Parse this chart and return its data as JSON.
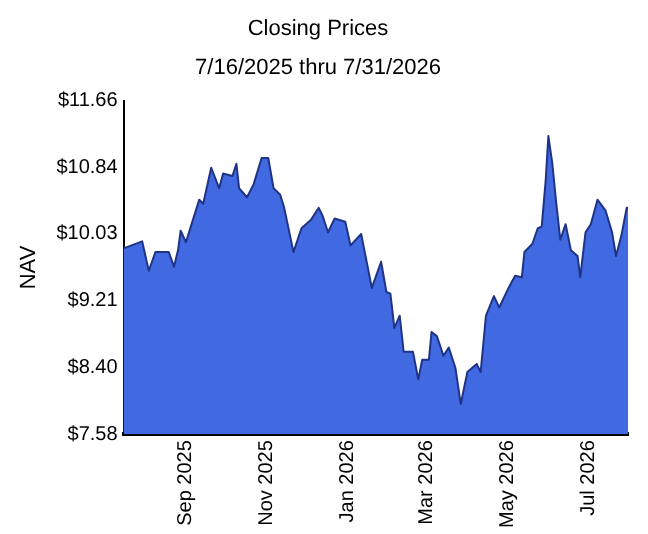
{
  "chart_data": {
    "type": "area",
    "title": "Closing Prices",
    "subtitle": "7/16/2025 thru 7/31/2026",
    "ylabel": "NAV",
    "x": [
      "2025-07-16",
      "2025-07-17",
      "2025-07-30",
      "2025-08-04",
      "2025-08-09",
      "2025-08-19",
      "2025-08-23",
      "2025-08-26",
      "2025-08-28",
      "2025-09-01",
      "2025-09-11",
      "2025-09-14",
      "2025-09-20",
      "2025-09-26",
      "2025-09-29",
      "2025-10-06",
      "2025-10-09",
      "2025-10-11",
      "2025-10-17",
      "2025-10-22",
      "2025-10-28",
      "2025-11-02",
      "2025-11-06",
      "2025-11-11",
      "2025-11-14",
      "2025-11-21",
      "2025-11-27",
      "2025-12-04",
      "2025-12-10",
      "2025-12-13",
      "2025-12-17",
      "2025-12-22",
      "2025-12-30",
      "2026-01-03",
      "2026-01-11",
      "2026-01-19",
      "2026-01-26",
      "2026-01-30",
      "2026-02-02",
      "2026-02-05",
      "2026-02-09",
      "2026-02-12",
      "2026-02-19",
      "2026-02-23",
      "2026-02-26",
      "2026-03-03",
      "2026-03-05",
      "2026-03-09",
      "2026-03-14",
      "2026-03-18",
      "2026-03-23",
      "2026-03-27",
      "2026-04-01",
      "2026-04-08",
      "2026-04-11",
      "2026-04-15",
      "2026-04-21",
      "2026-04-25",
      "2026-05-02",
      "2026-05-07",
      "2026-05-12",
      "2026-05-14",
      "2026-05-20",
      "2026-05-24",
      "2026-05-27",
      "2026-05-30",
      "2026-06-01",
      "2026-06-04",
      "2026-06-07",
      "2026-06-10",
      "2026-06-14",
      "2026-06-18",
      "2026-06-23",
      "2026-06-25",
      "2026-06-29",
      "2026-07-03",
      "2026-07-08",
      "2026-07-14",
      "2026-07-19",
      "2026-07-22",
      "2026-07-26",
      "2026-07-30",
      "2026-07-31"
    ],
    "series": [
      {
        "color": "#4169e1",
        "values": [
          9.86,
          9.86,
          9.94,
          9.58,
          9.81,
          9.81,
          9.63,
          9.83,
          10.07,
          9.93,
          10.45,
          10.4,
          10.84,
          10.59,
          10.77,
          10.74,
          10.89,
          10.59,
          10.48,
          10.64,
          10.96,
          10.96,
          10.59,
          10.51,
          10.35,
          9.81,
          10.1,
          10.2,
          10.35,
          10.25,
          10.05,
          10.22,
          10.18,
          9.89,
          10.03,
          9.37,
          9.69,
          9.32,
          9.3,
          8.88,
          9.03,
          8.59,
          8.59,
          8.25,
          8.49,
          8.49,
          8.83,
          8.78,
          8.54,
          8.64,
          8.39,
          7.95,
          8.34,
          8.44,
          8.34,
          9.03,
          9.27,
          9.13,
          9.37,
          9.52,
          9.5,
          9.81,
          9.91,
          10.1,
          10.12,
          10.69,
          11.23,
          10.89,
          10.4,
          9.96,
          10.15,
          9.83,
          9.76,
          9.5,
          10.05,
          10.15,
          10.45,
          10.32,
          10.05,
          9.76,
          10.01,
          10.35,
          10.35
        ]
      }
    ],
    "xlim": [
      "2025-07-16",
      "2026-07-31"
    ],
    "xticks": [
      {
        "value": "2025-09-01",
        "label": "Sep 2025"
      },
      {
        "value": "2025-11-01",
        "label": "Nov 2025"
      },
      {
        "value": "2026-01-01",
        "label": "Jan 2026"
      },
      {
        "value": "2026-03-01",
        "label": "Mar 2026"
      },
      {
        "value": "2026-05-01",
        "label": "May 2026"
      },
      {
        "value": "2026-07-01",
        "label": "Jul 2026"
      }
    ],
    "ylim": [
      7.58,
      11.66
    ],
    "yticks": [
      {
        "value": 7.58,
        "label": "$7.58"
      },
      {
        "value": 8.4,
        "label": "$8.40"
      },
      {
        "value": 9.21,
        "label": "$9.21"
      },
      {
        "value": 10.03,
        "label": "$10.03"
      },
      {
        "value": 10.84,
        "label": "$10.84"
      },
      {
        "value": 11.66,
        "label": "$11.66"
      }
    ],
    "grid": false,
    "legend": false
  }
}
